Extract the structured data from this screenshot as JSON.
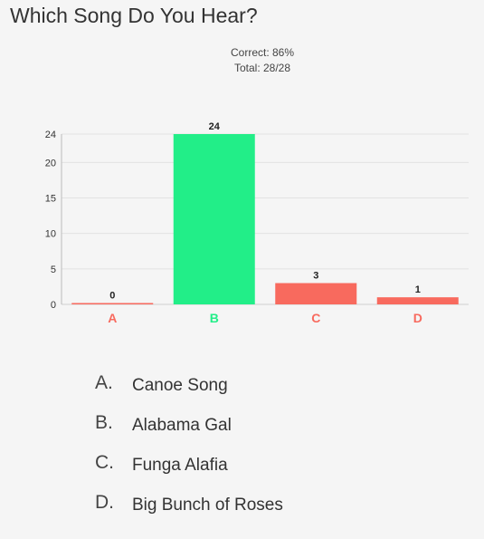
{
  "title": "Which Song Do You Hear?",
  "stats": {
    "correct": "Correct: 86%",
    "total": "Total: 28/28"
  },
  "chart_data": {
    "type": "bar",
    "categories": [
      "A",
      "B",
      "C",
      "D"
    ],
    "values": [
      0,
      24,
      3,
      1
    ],
    "colors": [
      "#f86a5e",
      "#22ee88",
      "#f86a5e",
      "#f86a5e"
    ],
    "ylim": [
      0,
      24
    ],
    "yticks": [
      0,
      5,
      10,
      15,
      20,
      24
    ],
    "grid": true
  },
  "answers": [
    {
      "letter": "A.",
      "text": "Canoe Song"
    },
    {
      "letter": "B.",
      "text": "Alabama Gal"
    },
    {
      "letter": "C.",
      "text": "Funga Alafia"
    },
    {
      "letter": "D.",
      "text": "Big Bunch of Roses"
    }
  ]
}
